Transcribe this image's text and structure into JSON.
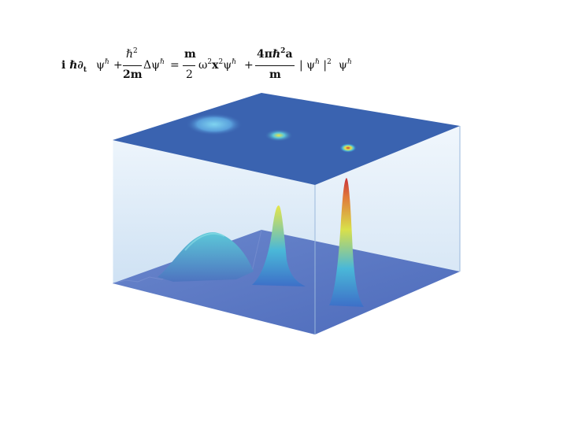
{
  "equation": {
    "lhs_term1": "i ℏ∂",
    "lhs_sub_t": "t",
    "psi": "ψ",
    "hbar_sup": "ℏ",
    "plus": "+",
    "frac1_num": "ℏ",
    "frac1_num_sup": "2",
    "frac1_den": "2m",
    "delta_psi": "Δψ",
    "equals": "=",
    "frac2_num": "m",
    "frac2_den": "2",
    "omega": "ω",
    "sq": "2",
    "x": "x",
    "frac3_num": "4πℏ",
    "frac3_num_sup": "2",
    "frac3_num_a": "a",
    "frac3_den": "m",
    "abs_open": "|",
    "abs_close": "|",
    "abs_sup": "2",
    "final_psi": "ψ"
  },
  "figure": {
    "peaks": [
      {
        "label": "broad",
        "height": 0.33,
        "width": "wide"
      },
      {
        "label": "medium",
        "height": 0.55,
        "width": "medium"
      },
      {
        "label": "narrow",
        "height": 0.85,
        "width": "narrow"
      }
    ],
    "colors": {
      "top_face": "#3a63b0",
      "floor": "#5b79c4",
      "wall": "#cfe2f3",
      "peak_low": "#4aa8d8",
      "peak_mid": "#d8e04a",
      "peak_high": "#c8323a"
    }
  }
}
